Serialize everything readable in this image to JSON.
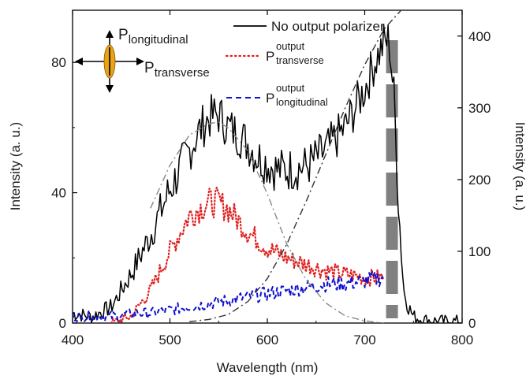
{
  "chart_data": {
    "type": "line",
    "xlabel": "Wavelength (nm)",
    "ylabel_left": "Intensity (a. u.)",
    "ylabel_right": "Intensity (a. u.)",
    "xlim": [
      400,
      800
    ],
    "ylim_left": [
      0,
      96
    ],
    "ylim_right": [
      0,
      436
    ],
    "x_ticks": [
      "400",
      "500",
      "600",
      "700",
      "800"
    ],
    "y_ticks_left": [
      "0",
      "40",
      "80"
    ],
    "y_ticks_right": [
      "0",
      "100",
      "200",
      "300",
      "400"
    ],
    "grid": false,
    "legend_position": "top-right",
    "series": [
      {
        "name": "No output polarizer",
        "style": "solid",
        "color": "#000000",
        "axis": "left",
        "x": [
          400,
          420,
          440,
          460,
          480,
          500,
          520,
          530,
          540,
          550,
          560,
          570,
          580,
          590,
          600,
          610,
          620,
          640,
          660,
          680,
          700,
          710,
          720,
          725,
          730,
          735,
          740,
          745,
          750,
          760,
          780,
          800
        ],
        "y": [
          3,
          2,
          5,
          15,
          27,
          41,
          53,
          59,
          63,
          64,
          60,
          58,
          55,
          51,
          49,
          47,
          47,
          48,
          53,
          60,
          72,
          80,
          86,
          87,
          70,
          35,
          10,
          5,
          2,
          1,
          0.5,
          0.5
        ]
      },
      {
        "name": "P_transverse^output",
        "name_main": "P",
        "name_sup": "output",
        "name_sub": "transverse",
        "style": "dotted",
        "color": "#e02020",
        "axis": "left",
        "x": [
          440,
          460,
          480,
          500,
          520,
          540,
          550,
          560,
          580,
          600,
          620,
          640,
          660,
          680,
          700,
          720
        ],
        "y": [
          0,
          2,
          10,
          22,
          33,
          37,
          37,
          35,
          28,
          23,
          20,
          18,
          16,
          15,
          14,
          14
        ]
      },
      {
        "name": "P_longitudinal^output",
        "name_main": "P",
        "name_sup": "output",
        "name_sub": "longitudinal",
        "style": "dashed",
        "color": "#1010d0",
        "axis": "left",
        "x": [
          400,
          420,
          440,
          460,
          480,
          500,
          520,
          540,
          560,
          580,
          600,
          620,
          640,
          660,
          680,
          700,
          720
        ],
        "y": [
          2,
          2,
          2,
          3,
          3,
          4,
          5,
          6,
          7,
          8,
          9,
          10,
          11,
          12,
          12,
          13,
          14
        ]
      },
      {
        "name": "",
        "style": "dash-dot",
        "color": "#888888",
        "axis": "right",
        "x": [
          480,
          500,
          520,
          540,
          550,
          560,
          580,
          600,
          620,
          640,
          660,
          680,
          700,
          720
        ],
        "y": [
          160,
          220,
          262,
          278,
          280,
          272,
          240,
          180,
          110,
          60,
          28,
          10,
          3,
          0
        ]
      },
      {
        "name": "",
        "style": "dash-dot",
        "color": "#333333",
        "axis": "right",
        "x": [
          520,
          540,
          560,
          580,
          600,
          620,
          640,
          660,
          680,
          700,
          720,
          740,
          760
        ],
        "y": [
          2,
          5,
          12,
          30,
          62,
          110,
          170,
          235,
          300,
          360,
          410,
          440,
          460
        ]
      }
    ],
    "shaded_band": {
      "x": 728,
      "pattern": "dashed-gray"
    }
  },
  "inset": {
    "label_longitudinal_main": "P",
    "label_longitudinal_sub": "longitudinal",
    "label_transverse_main": "P",
    "label_transverse_sub": "transverse",
    "ellipse_color": "#e8a317"
  }
}
